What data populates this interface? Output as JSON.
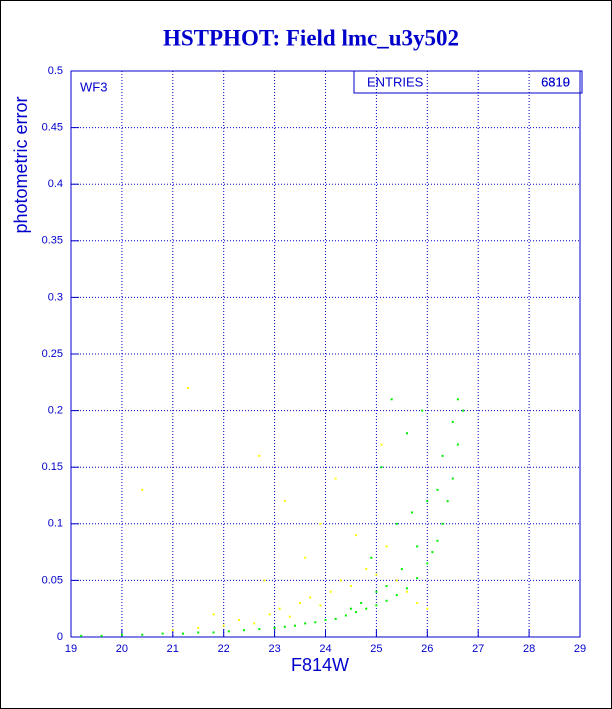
{
  "chart_data": {
    "type": "scatter",
    "title": "HSTPHOT: Field lmc_u3y502",
    "x_label": "F814W",
    "y_label": "photometric error",
    "annotation": "WF3",
    "stats": {
      "label": "ENTRIES",
      "values": [
        "6310",
        "6819"
      ]
    },
    "xlim": [
      19,
      29
    ],
    "xticks": [
      19,
      20,
      21,
      22,
      23,
      24,
      25,
      26,
      27,
      28,
      29
    ],
    "ylim": [
      0,
      0.5
    ],
    "yticks": [
      0,
      0.05,
      0.1,
      0.15,
      0.2,
      0.25,
      0.3,
      0.35,
      0.4,
      0.45,
      0.5
    ],
    "grid": true,
    "series": [
      {
        "color": "#ffff00",
        "x": [
          21.0,
          21.5,
          22.0,
          22.3,
          22.6,
          22.9,
          23.1,
          23.3,
          23.5,
          23.7,
          23.9,
          24.1,
          24.3,
          24.5,
          24.8,
          25.0,
          25.2,
          25.4,
          25.6,
          25.8,
          23.2,
          23.9,
          24.6,
          22.7,
          21.3,
          20.4,
          25.1,
          24.2,
          23.6,
          22.8,
          21.8,
          26.0
        ],
        "values": [
          0.006,
          0.008,
          0.01,
          0.015,
          0.012,
          0.02,
          0.025,
          0.018,
          0.03,
          0.035,
          0.028,
          0.04,
          0.05,
          0.045,
          0.06,
          0.055,
          0.08,
          0.05,
          0.04,
          0.03,
          0.12,
          0.1,
          0.09,
          0.16,
          0.22,
          0.13,
          0.17,
          0.14,
          0.07,
          0.05,
          0.02,
          0.025
        ]
      },
      {
        "color": "#00ee00",
        "x": [
          19.2,
          19.6,
          20.0,
          20.4,
          20.8,
          21.2,
          21.5,
          21.8,
          22.1,
          22.4,
          22.7,
          23.0,
          23.2,
          23.4,
          23.6,
          23.8,
          24.0,
          24.2,
          24.4,
          24.6,
          24.8,
          25.0,
          25.2,
          25.4,
          25.6,
          25.8,
          26.0,
          26.1,
          26.2,
          26.3,
          26.4,
          26.5,
          26.6,
          26.7,
          26.5,
          26.3,
          26.0,
          25.8,
          25.5,
          25.2,
          25.0,
          24.7,
          24.5,
          25.3,
          25.6,
          25.9,
          25.1,
          26.2,
          25.7,
          26.6,
          25.4,
          24.9
        ],
        "values": [
          0.001,
          0.001,
          0.002,
          0.002,
          0.003,
          0.003,
          0.004,
          0.004,
          0.005,
          0.006,
          0.007,
          0.008,
          0.009,
          0.01,
          0.012,
          0.013,
          0.015,
          0.016,
          0.019,
          0.022,
          0.025,
          0.028,
          0.032,
          0.037,
          0.043,
          0.052,
          0.065,
          0.075,
          0.085,
          0.1,
          0.12,
          0.14,
          0.17,
          0.2,
          0.19,
          0.16,
          0.12,
          0.08,
          0.06,
          0.045,
          0.04,
          0.03,
          0.025,
          0.21,
          0.18,
          0.2,
          0.15,
          0.13,
          0.11,
          0.21,
          0.1,
          0.07
        ]
      }
    ]
  }
}
